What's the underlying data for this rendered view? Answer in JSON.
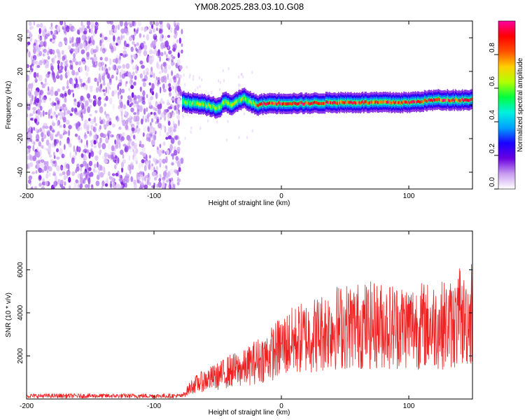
{
  "title": "YM08.2025.283.03.10.G08",
  "chart_data": [
    {
      "type": "heatmap",
      "xlabel": "Height of straight line (km)",
      "ylabel": "Frequency (Hz)",
      "xlim": [
        -200,
        150
      ],
      "ylim": [
        -50,
        50
      ],
      "xticks": [
        "-200",
        "-100",
        "0",
        "100"
      ],
      "yticks": [
        "-40",
        "-20",
        "0",
        "20",
        "40"
      ],
      "colorbar": {
        "label": "Normalized spectral amplitude",
        "range": [
          0,
          1
        ],
        "ticks": [
          "0.0",
          "0.2",
          "0.4",
          "0.6",
          "0.8"
        ],
        "colors": [
          "#ffffff",
          "#c89cf0",
          "#6a00e0",
          "#1a00ff",
          "#00a0ff",
          "#00f0e0",
          "#00ff40",
          "#b0ff00",
          "#ffd000",
          "#ff5000",
          "#ff0000",
          "#ff00a0"
        ]
      },
      "noise_region_x": [
        -200,
        -78
      ],
      "signal_region_x": [
        -78,
        150
      ],
      "frequency_trace": {
        "x": [
          -78,
          -70,
          -60,
          -50,
          -45,
          -40,
          -30,
          -25,
          -20,
          -10,
          0,
          20,
          40,
          60,
          80,
          100,
          120,
          140,
          150
        ],
        "y": [
          2,
          1,
          0,
          -2,
          2,
          0,
          4,
          2,
          0,
          1,
          1,
          1,
          1.5,
          1.5,
          1.5,
          1.5,
          3,
          3,
          3
        ]
      }
    },
    {
      "type": "line",
      "xlabel": "Height of straight line (km)",
      "ylabel": "SNR (10 * v/v)",
      "xlim": [
        -200,
        150
      ],
      "ylim": [
        0,
        7800
      ],
      "xticks": [
        "-200",
        "-100",
        "0",
        "100"
      ],
      "yticks": [
        "2000",
        "4000",
        "6000"
      ],
      "color": "#ee2222",
      "envelope": {
        "x": [
          -200,
          -78,
          -70,
          -60,
          -50,
          -40,
          -30,
          -20,
          -10,
          0,
          10,
          20,
          30,
          40,
          60,
          80,
          100,
          120,
          140,
          150
        ],
        "y": [
          150,
          150,
          700,
          1000,
          1200,
          1500,
          1600,
          2000,
          2300,
          2800,
          3100,
          3300,
          3500,
          3800,
          3900,
          3900,
          3900,
          3900,
          4000,
          4400
        ]
      }
    }
  ]
}
